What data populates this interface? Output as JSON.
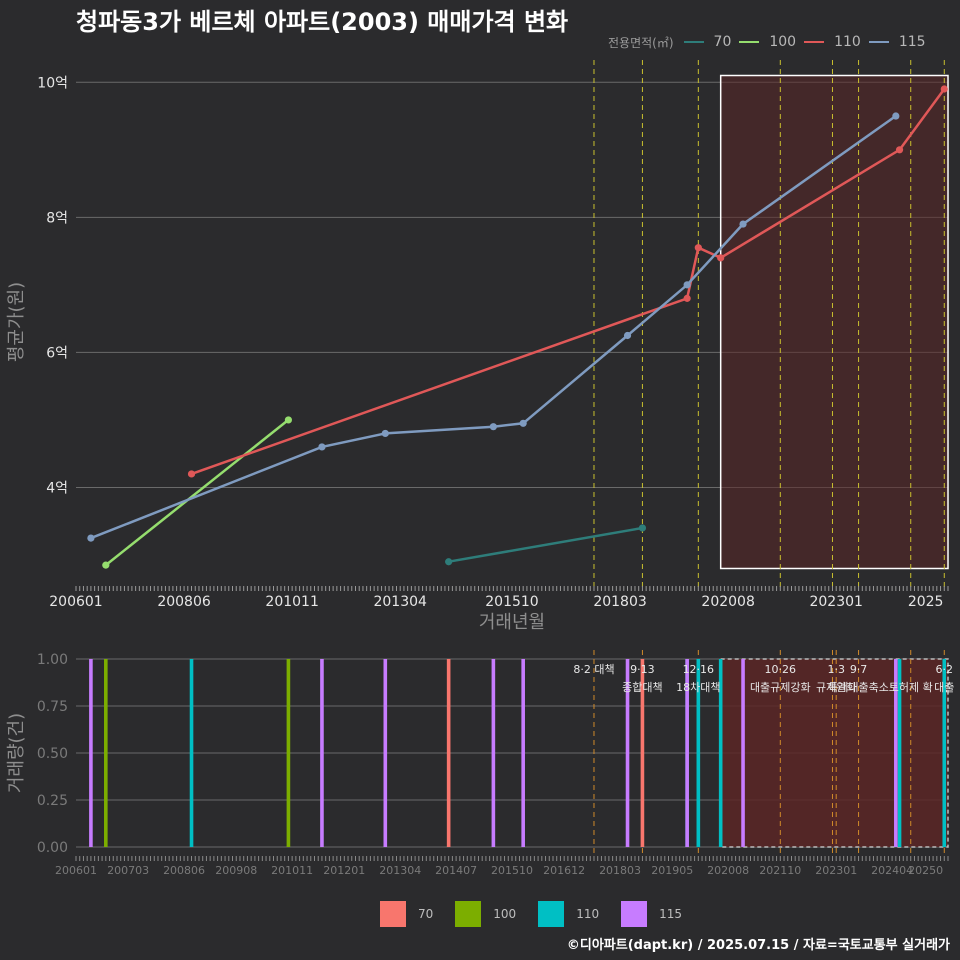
{
  "page": {
    "title": "청파동3가 베르체 아파트(2003) 매매가격 변화",
    "caption": "©디아파트(dapt.kr) / 2025.07.15 / 자료=국토교통부 실거래가"
  },
  "colors": {
    "background": "#2b2b2d",
    "grid": "#6a6a6a",
    "policy_line_top": "#c9c02e",
    "policy_line_bottom": "#d08a2a",
    "highlight_fill": "#5a2626",
    "highlight_border": "#ffffff"
  },
  "chart_data": [
    {
      "type": "line",
      "title": "청파동3가 베르체 아파트(2003) 매매가격 변화",
      "xlabel": "거래년월",
      "ylabel": "평균가(원)",
      "legend_title": "전용면적(㎡)",
      "legend_position": "top-right",
      "x_ticks": [
        "200601",
        "200806",
        "201011",
        "201304",
        "201510",
        "201803",
        "202008",
        "202301",
        "2025"
      ],
      "y_ticks": [
        "4억",
        "6억",
        "8억",
        "10억"
      ],
      "y_tick_values": [
        4,
        6,
        8,
        10
      ],
      "y_unit": "억",
      "xlim": [
        "2006-01",
        "2025-07"
      ],
      "ylim": [
        2.6,
        10.3
      ],
      "grid": true,
      "policy_dates": [
        "2017-08",
        "2018-09",
        "2019-12",
        "2021-10",
        "2022-12",
        "2023-07",
        "2024-09",
        "2025-06"
      ],
      "highlight_range": [
        "2020-06",
        "2025-07"
      ],
      "series": [
        {
          "name": "70",
          "color": "#2e7d7a",
          "points": [
            [
              "2014-05",
              2.9
            ],
            [
              "2018-09",
              3.4
            ]
          ]
        },
        {
          "name": "100",
          "color": "#95dd6e",
          "points": [
            [
              "2006-09",
              2.85
            ],
            [
              "2010-10",
              5.0
            ]
          ]
        },
        {
          "name": "110",
          "color": "#e05858",
          "points": [
            [
              "2008-08",
              4.2
            ],
            [
              "2019-09",
              6.8
            ],
            [
              "2019-12",
              7.55
            ],
            [
              "2020-06",
              7.4
            ],
            [
              "2024-06",
              9.0
            ],
            [
              "2025-06",
              9.9
            ]
          ]
        },
        {
          "name": "115",
          "color": "#7f9bc0",
          "points": [
            [
              "2006-05",
              3.25
            ],
            [
              "2011-07",
              4.6
            ],
            [
              "2012-12",
              4.8
            ],
            [
              "2015-05",
              4.9
            ],
            [
              "2016-01",
              4.95
            ],
            [
              "2018-05",
              6.25
            ],
            [
              "2019-09",
              7.0
            ],
            [
              "2020-12",
              7.9
            ],
            [
              "2024-05",
              9.5
            ]
          ]
        }
      ]
    },
    {
      "type": "bar",
      "xlabel": "",
      "ylabel": "거래량(건)",
      "legend_position": "bottom",
      "y_ticks": [
        "0.00",
        "0.25",
        "0.50",
        "0.75",
        "1.00"
      ],
      "y_tick_values": [
        0,
        0.25,
        0.5,
        0.75,
        1
      ],
      "ylim": [
        0,
        1
      ],
      "x_ticks": [
        "200601",
        "200703",
        "200806",
        "200908",
        "201011",
        "201201",
        "201304",
        "201407",
        "201510",
        "201612",
        "201803",
        "201905",
        "202008",
        "202110",
        "202301",
        "202404",
        "20250"
      ],
      "policy_annotations": [
        {
          "date": "2017-08",
          "line1": "8·2 대책",
          "line2": ""
        },
        {
          "date": "2018-09",
          "line1": "9·13",
          "line2": "종합대책"
        },
        {
          "date": "2019-12",
          "line1": "12·16",
          "line2": "18차대책"
        },
        {
          "date": "2021-10",
          "line1": "10·26",
          "line2": "대출규제강화"
        },
        {
          "date": "2022-12",
          "line1": "",
          "line2": ""
        },
        {
          "date": "2023-01",
          "line1": "1·3",
          "line2": "규제완화"
        },
        {
          "date": "2023-07",
          "line1": "9·7",
          "line2": "특례대출축소"
        },
        {
          "date": "2024-09",
          "line1": "",
          "line2": "토허제 확"
        },
        {
          "date": "2025-06",
          "line1": "6·2",
          "line2": "대출"
        }
      ],
      "series": [
        {
          "name": "70",
          "color": "#f8766d",
          "dates": [
            "2014-05",
            "2018-09"
          ],
          "values": [
            1,
            1
          ]
        },
        {
          "name": "100",
          "color": "#7cae00",
          "dates": [
            "2006-09",
            "2010-10"
          ],
          "values": [
            1,
            1
          ]
        },
        {
          "name": "110",
          "color": "#00bfc4",
          "dates": [
            "2008-08",
            "2019-09",
            "2019-12",
            "2020-06",
            "2024-06",
            "2025-06"
          ],
          "values": [
            1,
            1,
            1,
            1,
            1,
            1
          ]
        },
        {
          "name": "115",
          "color": "#c77cff",
          "dates": [
            "2006-05",
            "2011-07",
            "2012-12",
            "2015-05",
            "2016-01",
            "2018-05",
            "2019-09",
            "2020-12",
            "2024-05"
          ],
          "values": [
            1,
            1,
            1,
            1,
            1,
            1,
            1,
            1,
            1
          ]
        }
      ]
    }
  ]
}
